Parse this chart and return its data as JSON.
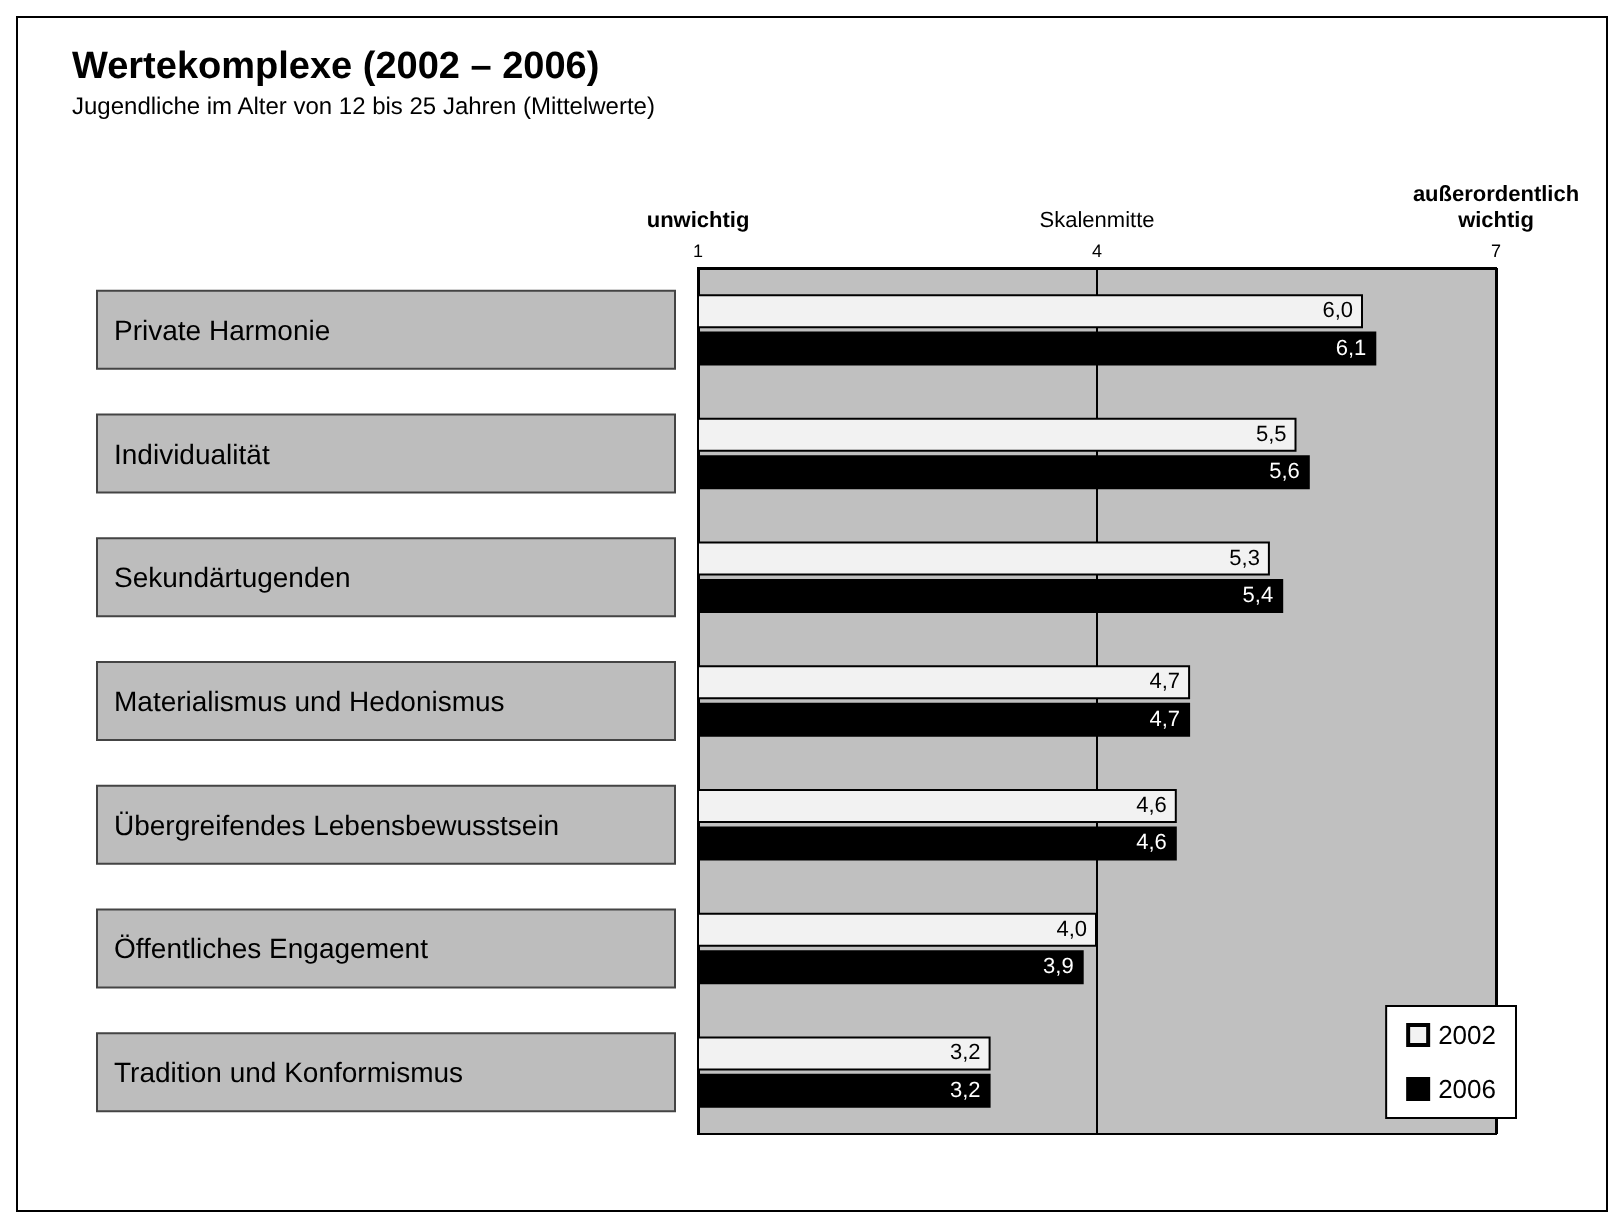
{
  "chart_data": {
    "type": "bar",
    "orientation": "horizontal",
    "title": "Wertekomplexe (2002 – 2006)",
    "subtitle": "Jugendliche im Alter von 12 bis 25 Jahren (Mittelwerte)",
    "categories": [
      "Private Harmonie",
      "Individualität",
      "Sekundärtugenden",
      "Materialismus und Hedonismus",
      "Übergreifendes Lebensbewusstsein",
      "Öffentliches Engagement",
      "Tradition und Konformismus"
    ],
    "series": [
      {
        "name": "2002",
        "color": "#f2f2f2",
        "values": [
          6.0,
          5.5,
          5.3,
          4.7,
          4.6,
          4.0,
          3.2
        ],
        "value_labels": [
          "6,0",
          "5,5",
          "5,3",
          "4,7",
          "4,6",
          "4,0",
          "3,2"
        ]
      },
      {
        "name": "2006",
        "color": "#000000",
        "values": [
          6.1,
          5.6,
          5.4,
          4.7,
          4.6,
          3.9,
          3.2
        ],
        "value_labels": [
          "6,1",
          "5,6",
          "5,4",
          "4,7",
          "4,6",
          "3,9",
          "3,2"
        ]
      }
    ],
    "xlim": [
      1,
      7
    ],
    "xticks": [
      1,
      4,
      7
    ],
    "annotations": [
      "unwichtig",
      "Skalenmitte",
      "außerordentlich\nwichtig"
    ],
    "grid": "x",
    "legend": "bottom right"
  }
}
